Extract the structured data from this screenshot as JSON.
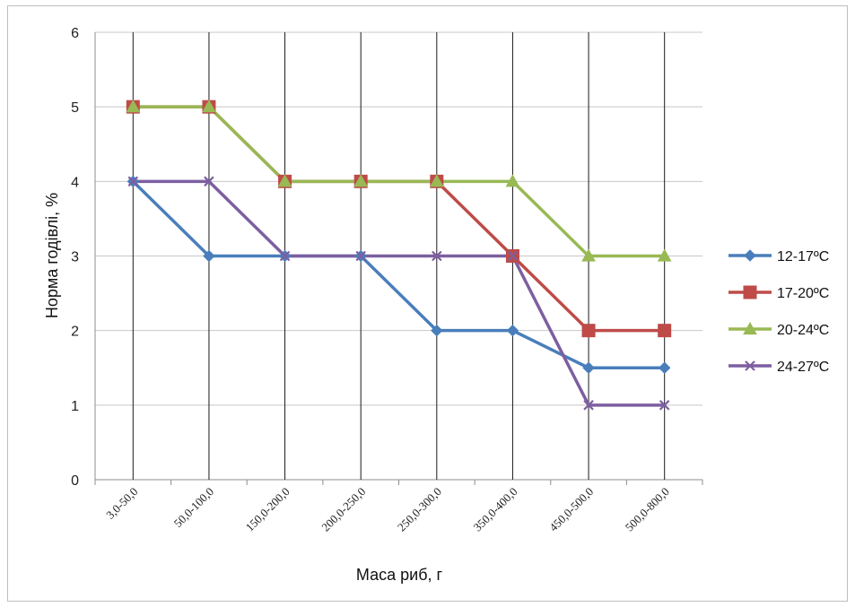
{
  "chart_data": {
    "type": "line",
    "title": "",
    "xlabel": "Маса риб, г",
    "ylabel": "Норма годівлі, %",
    "ylim": [
      0,
      6
    ],
    "yticks": [
      0,
      1,
      2,
      3,
      4,
      5,
      6
    ],
    "grid": "horizontal and vertical",
    "legend": "right",
    "categories": [
      "3,0-50,0",
      "50,0-100,0",
      "150,0-200,0",
      "200,0-250,0",
      "250,0-300,0",
      "350,0-400,0",
      "450,0-500,0",
      "500,0-800,0"
    ],
    "series": [
      {
        "name": "12-17ºC",
        "color": "#4a7ebb",
        "marker": "diamond",
        "values": [
          4,
          3,
          3,
          3,
          2,
          2,
          1.5,
          1.5
        ]
      },
      {
        "name": "17-20ºC",
        "color": "#be4b48",
        "marker": "square",
        "values": [
          5,
          5,
          4,
          4,
          4,
          3,
          2,
          2
        ]
      },
      {
        "name": "20-24ºC",
        "color": "#98b954",
        "marker": "triangle",
        "values": [
          5,
          5,
          4,
          4,
          4,
          4,
          3,
          3
        ]
      },
      {
        "name": "24-27ºC",
        "color": "#7d5fa0",
        "marker": "x",
        "values": [
          4,
          4,
          3,
          3,
          3,
          3,
          1,
          1
        ]
      }
    ]
  }
}
